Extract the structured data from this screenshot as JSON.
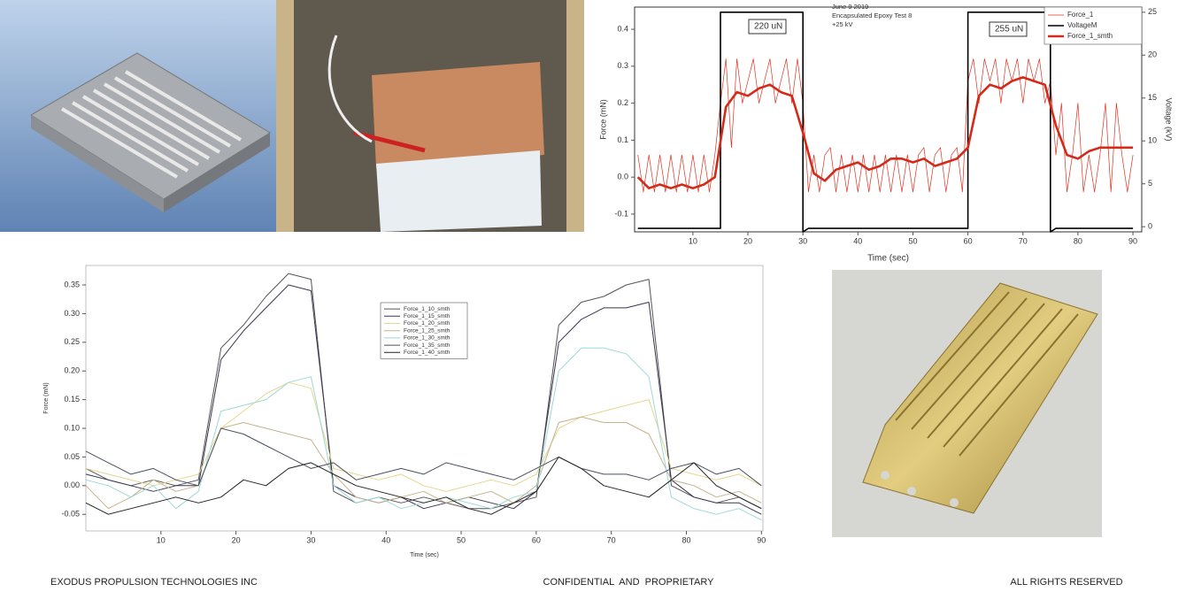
{
  "chart_data": [
    {
      "type": "line",
      "xlabel": "Time (sec)",
      "ylabel": "Force (mN)",
      "y2label": "Voltage (kV)",
      "annotations": [
        "220 uN",
        "255 uN",
        "June 9 2019",
        "Encapsulated Epoxy Test 8",
        "+25 kV"
      ],
      "xlim": [
        -0.6,
        91.6
      ],
      "xticks": [
        10,
        20,
        30,
        40,
        50,
        60,
        70,
        80,
        90
      ],
      "ylim": [
        -0.148,
        0.46
      ],
      "yticks": [
        -0.1,
        {
          "value": 0,
          "label": "0.0"
        },
        0.1,
        0.2,
        0.3,
        0.4
      ],
      "y2lim": [
        -0.6,
        25.6
      ],
      "y2ticks": [
        0,
        5,
        10,
        15,
        20,
        25
      ],
      "legend": "upper right",
      "series": [
        {
          "name": "Force_1",
          "color": "#e0301e",
          "x": [
            0,
            1,
            2,
            3,
            4,
            5,
            6,
            7,
            8,
            9,
            10,
            11,
            12,
            13,
            14,
            15,
            16,
            17,
            18,
            19,
            20,
            21,
            22,
            23,
            24,
            25,
            26,
            27,
            28,
            29,
            30,
            31,
            32,
            33,
            34,
            35,
            36,
            37,
            38,
            39,
            40,
            41,
            42,
            43,
            44,
            45,
            46,
            47,
            48,
            49,
            50,
            51,
            52,
            53,
            54,
            55,
            56,
            57,
            58,
            59,
            60,
            61,
            62,
            63,
            64,
            65,
            66,
            67,
            68,
            69,
            70,
            71,
            72,
            73,
            74,
            75,
            76,
            77,
            78,
            79,
            80,
            81,
            82,
            83,
            84,
            85,
            86,
            87,
            88,
            89,
            90
          ],
          "values": [
            0.06,
            -0.04,
            0.06,
            -0.04,
            0.06,
            -0.04,
            0.06,
            -0.04,
            0.06,
            -0.04,
            0.06,
            -0.04,
            0.06,
            -0.04,
            0.06,
            0.2,
            0.32,
            0.08,
            0.32,
            0.2,
            0.26,
            0.32,
            0.2,
            0.26,
            0.32,
            0.2,
            0.26,
            0.32,
            0.2,
            0.32,
            0.2,
            -0.04,
            0.06,
            -0.04,
            0.06,
            0.08,
            -0.04,
            0.06,
            -0.04,
            0.06,
            -0.04,
            0.06,
            -0.04,
            0.06,
            -0.04,
            0.06,
            -0.04,
            0.06,
            -0.04,
            0.06,
            -0.04,
            0.06,
            0.08,
            -0.04,
            0.06,
            0.08,
            -0.04,
            0.06,
            0.08,
            -0.04,
            0.26,
            0.32,
            0.2,
            0.32,
            0.26,
            0.32,
            0.2,
            0.32,
            0.26,
            0.32,
            0.2,
            0.32,
            0.26,
            0.32,
            0.2,
            0.26,
            0.06,
            0.2,
            -0.04,
            0.06,
            0.2,
            -0.04,
            0.06,
            -0.04,
            0.06,
            0.2,
            -0.04,
            0.2,
            0.06,
            -0.04,
            0.06
          ]
        },
        {
          "name": "VoltageM",
          "color": "#000000",
          "axis": "y2",
          "x": [
            0,
            15,
            15,
            30,
            30,
            31,
            60,
            60,
            75,
            75,
            76,
            90
          ],
          "values": [
            -0.2,
            -0.2,
            25,
            25,
            -0.6,
            -0.2,
            -0.2,
            25,
            25,
            -0.6,
            -0.2,
            -0.2
          ]
        },
        {
          "name": "Force_1_smth",
          "color": "#d42a1a",
          "x": [
            0,
            2,
            4,
            6,
            8,
            10,
            12,
            14,
            16,
            18,
            20,
            22,
            24,
            26,
            28,
            30,
            32,
            34,
            36,
            38,
            40,
            42,
            44,
            46,
            48,
            50,
            52,
            54,
            56,
            58,
            60,
            62,
            64,
            66,
            68,
            70,
            72,
            74,
            76,
            78,
            80,
            82,
            84,
            86,
            88,
            90
          ],
          "values": [
            0.0,
            -0.03,
            -0.02,
            -0.03,
            -0.02,
            -0.03,
            -0.02,
            0.0,
            0.19,
            0.23,
            0.22,
            0.24,
            0.25,
            0.23,
            0.22,
            0.12,
            0.01,
            -0.01,
            0.02,
            0.03,
            0.04,
            0.02,
            0.03,
            0.05,
            0.05,
            0.04,
            0.05,
            0.03,
            0.04,
            0.05,
            0.08,
            0.22,
            0.25,
            0.24,
            0.26,
            0.27,
            0.26,
            0.25,
            0.14,
            0.06,
            0.05,
            0.07,
            0.08,
            0.08,
            0.08,
            0.08
          ]
        }
      ]
    },
    {
      "type": "line",
      "xlabel": "Time (sec)",
      "ylabel": "Force (mN)",
      "xlim": [
        0,
        90.2
      ],
      "xticks": [
        10,
        20,
        30,
        40,
        50,
        60,
        70,
        80,
        90
      ],
      "ylim": [
        -0.079,
        0.384
      ],
      "yticks": [
        -0.05,
        {
          "value": 0,
          "label": "0.00"
        },
        0.05,
        {
          "value": 0.1,
          "label": "0.10"
        },
        0.15,
        {
          "value": 0.2,
          "label": "0.20"
        },
        0.25,
        {
          "value": 0.3,
          "label": "0.30"
        },
        0.35
      ],
      "legend": "upper center",
      "x": [
        0,
        3,
        6,
        9,
        12,
        15,
        18,
        21,
        24,
        27,
        30,
        33,
        36,
        39,
        42,
        45,
        48,
        51,
        54,
        57,
        60,
        63,
        66,
        69,
        72,
        75,
        78,
        81,
        84,
        87,
        90
      ],
      "series": [
        {
          "name": "Force_1_10_smth",
          "color": "#555555",
          "values": [
            0.03,
            0.01,
            0.0,
            0.01,
            0.0,
            0.01,
            0.24,
            0.28,
            0.33,
            0.37,
            0.36,
            -0.01,
            -0.03,
            -0.02,
            -0.03,
            -0.02,
            -0.03,
            -0.04,
            -0.04,
            -0.03,
            -0.02,
            0.28,
            0.32,
            0.33,
            0.35,
            0.36,
            0.0,
            -0.02,
            -0.03,
            -0.02,
            -0.04
          ]
        },
        {
          "name": "Force_1_15_smth",
          "color": "#3a3550",
          "values": [
            0.02,
            0.01,
            0.0,
            -0.01,
            0.0,
            0.0,
            0.22,
            0.27,
            0.31,
            0.35,
            0.34,
            0.0,
            -0.02,
            -0.03,
            -0.02,
            -0.04,
            -0.03,
            -0.02,
            -0.03,
            -0.04,
            -0.01,
            0.25,
            0.29,
            0.31,
            0.31,
            0.32,
            0.01,
            -0.02,
            -0.03,
            -0.03,
            -0.05
          ]
        },
        {
          "name": "Force_1_20_smth",
          "color": "#e6d68c",
          "values": [
            0.03,
            0.02,
            0.01,
            0.0,
            0.01,
            0.02,
            0.1,
            0.13,
            0.16,
            0.18,
            0.17,
            0.03,
            0.02,
            0.01,
            0.02,
            0.0,
            -0.01,
            0.0,
            0.01,
            0.0,
            0.02,
            0.1,
            0.12,
            0.13,
            0.14,
            0.15,
            0.03,
            0.02,
            0.01,
            0.02,
            0.0
          ]
        },
        {
          "name": "Force_1_25_smth",
          "color": "#c4b48c",
          "values": [
            0.0,
            -0.04,
            -0.02,
            0.01,
            -0.01,
            0.0,
            0.1,
            0.11,
            0.1,
            0.09,
            0.08,
            0.02,
            -0.02,
            -0.03,
            -0.02,
            -0.01,
            -0.03,
            -0.02,
            -0.01,
            -0.03,
            0.0,
            0.11,
            0.12,
            0.11,
            0.11,
            0.09,
            0.01,
            0.0,
            -0.02,
            -0.01,
            -0.03
          ]
        },
        {
          "name": "Force_1_30_smth",
          "color": "#9cd8d8",
          "values": [
            0.01,
            0.0,
            -0.02,
            0.0,
            -0.04,
            -0.01,
            0.13,
            0.14,
            0.15,
            0.18,
            0.19,
            0.0,
            -0.03,
            -0.02,
            -0.04,
            -0.03,
            -0.02,
            -0.03,
            -0.04,
            -0.02,
            -0.01,
            0.2,
            0.24,
            0.24,
            0.23,
            0.19,
            -0.02,
            -0.04,
            -0.05,
            -0.04,
            -0.06
          ]
        },
        {
          "name": "Force_1_35_smth",
          "color": "#4a5060",
          "values": [
            0.06,
            0.04,
            0.02,
            0.03,
            0.01,
            0.0,
            0.1,
            0.09,
            0.07,
            0.05,
            0.03,
            0.04,
            0.01,
            0.02,
            0.03,
            0.02,
            0.04,
            0.03,
            0.02,
            0.01,
            0.03,
            0.05,
            0.03,
            0.02,
            0.02,
            0.01,
            0.03,
            0.04,
            0.02,
            0.03,
            0.0
          ]
        },
        {
          "name": "Force_1_40_smth",
          "color": "#222222",
          "values": [
            -0.03,
            -0.05,
            -0.04,
            -0.03,
            -0.02,
            -0.03,
            -0.02,
            0.01,
            0.0,
            0.03,
            0.04,
            0.02,
            0.0,
            -0.01,
            -0.02,
            -0.03,
            -0.02,
            -0.04,
            -0.05,
            -0.03,
            -0.01,
            0.05,
            0.03,
            0.0,
            -0.01,
            -0.02,
            0.01,
            0.04,
            0.0,
            -0.02,
            -0.04
          ]
        }
      ]
    }
  ],
  "footer": {
    "left": "EXODUS PROPULSION TECHNOLOGIES INC",
    "center": "CONFIDENTIAL  AND  PROPRIETARY",
    "right": "ALL RIGHTS RESERVED"
  }
}
